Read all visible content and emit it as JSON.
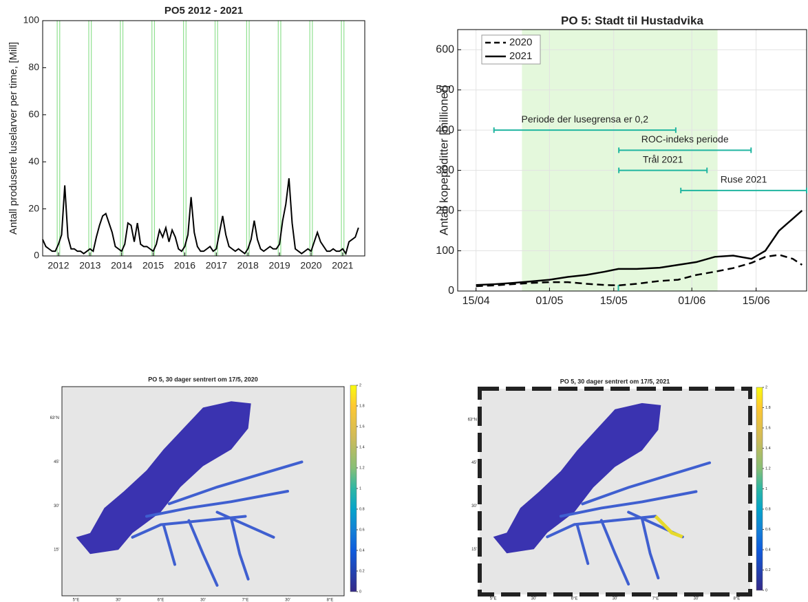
{
  "chart_data": [
    {
      "type": "line",
      "title": "PO5 2012 - 2021",
      "ylabel": "Antall produserte luselarver per time, [Mill]",
      "x": [
        2011.5,
        2011.6,
        2011.7,
        2011.8,
        2011.9,
        2012.0,
        2012.1,
        2012.2,
        2012.3,
        2012.4,
        2012.5,
        2012.6,
        2012.7,
        2012.8,
        2012.9,
        2013.0,
        2013.1,
        2013.2,
        2013.3,
        2013.4,
        2013.5,
        2013.6,
        2013.7,
        2013.8,
        2013.9,
        2014.0,
        2014.1,
        2014.2,
        2014.3,
        2014.4,
        2014.5,
        2014.6,
        2014.7,
        2014.8,
        2014.9,
        2015.0,
        2015.1,
        2015.2,
        2015.3,
        2015.4,
        2015.5,
        2015.6,
        2015.7,
        2015.8,
        2015.9,
        2016.0,
        2016.1,
        2016.2,
        2016.3,
        2016.4,
        2016.5,
        2016.6,
        2016.7,
        2016.8,
        2016.9,
        2017.0,
        2017.1,
        2017.2,
        2017.3,
        2017.4,
        2017.5,
        2017.6,
        2017.7,
        2017.8,
        2017.9,
        2018.0,
        2018.1,
        2018.2,
        2018.3,
        2018.4,
        2018.5,
        2018.6,
        2018.7,
        2018.8,
        2018.9,
        2019.0,
        2019.1,
        2019.2,
        2019.3,
        2019.4,
        2019.5,
        2019.6,
        2019.7,
        2019.8,
        2019.9,
        2020.0,
        2020.1,
        2020.2,
        2020.3,
        2020.4,
        2020.5,
        2020.6,
        2020.7,
        2020.8,
        2020.9,
        2021.0,
        2021.1,
        2021.2,
        2021.3,
        2021.4,
        2021.5
      ],
      "values": [
        7,
        4,
        3,
        2,
        2,
        5,
        9,
        30,
        8,
        3,
        3,
        2,
        2,
        1,
        2,
        3,
        2,
        8,
        13,
        17,
        18,
        14,
        10,
        4,
        3,
        2,
        5,
        14,
        13,
        6,
        14,
        5,
        4,
        4,
        3,
        2,
        5,
        11,
        8,
        12,
        6,
        11,
        8,
        3,
        2,
        4,
        9,
        25,
        10,
        4,
        2,
        2,
        3,
        4,
        2,
        3,
        10,
        17,
        9,
        4,
        3,
        2,
        3,
        2,
        1,
        3,
        7,
        15,
        7,
        3,
        2,
        3,
        4,
        3,
        3,
        5,
        15,
        22,
        33,
        14,
        3,
        2,
        1,
        2,
        3,
        2,
        6,
        10,
        6,
        4,
        2,
        2,
        3,
        2,
        2,
        3,
        1,
        6,
        7,
        8,
        12
      ],
      "color": "#000000",
      "xlim": [
        2011.5,
        2021.7
      ],
      "xticks": [
        2012,
        2013,
        2014,
        2015,
        2016,
        2017,
        2018,
        2019,
        2020,
        2021
      ],
      "ylim": [
        0,
        100
      ],
      "yticks": [
        0,
        20,
        40,
        60,
        80,
        100
      ],
      "highlight_color": "#8fe08f",
      "highlight_lines": [
        2011.96,
        2012.04,
        2012.96,
        2013.04,
        2013.96,
        2014.04,
        2014.96,
        2015.04,
        2015.96,
        2016.04,
        2016.96,
        2017.04,
        2017.96,
        2018.04,
        2018.96,
        2019.04,
        2019.96,
        2020.04,
        2020.96,
        2021.04
      ]
    },
    {
      "type": "line",
      "title": "PO 5: Stadt til Hustadvika",
      "ylabel": "Antall kopepoditter [millioner]",
      "x": [
        0,
        4,
        8,
        12,
        16,
        20,
        24,
        28,
        31,
        35,
        40,
        44,
        48,
        52,
        56,
        60,
        63,
        66,
        69,
        71
      ],
      "xlim": [
        -4,
        72
      ],
      "xticks": [
        {
          "value": 0,
          "label": "15/04"
        },
        {
          "value": 16,
          "label": "01/05"
        },
        {
          "value": 30,
          "label": "15/05"
        },
        {
          "value": 47,
          "label": "01/06"
        },
        {
          "value": 61,
          "label": "15/06"
        }
      ],
      "ylim": [
        0,
        650
      ],
      "yticks": [
        0,
        100,
        200,
        300,
        400,
        500,
        600
      ],
      "grid": true,
      "legend": "upper left",
      "shaded_region": [
        10,
        52.6
      ],
      "shaded_color": "#e4f8dc",
      "series": [
        {
          "name": "2020",
          "color": "#000000",
          "linestyle": "dashed",
          "values": [
            12,
            14,
            17,
            20,
            22,
            22,
            18,
            15,
            14,
            18,
            25,
            28,
            40,
            48,
            57,
            70,
            85,
            90,
            80,
            65
          ]
        },
        {
          "name": "2021",
          "color": "#000000",
          "linestyle": "solid",
          "values": [
            15,
            17,
            20,
            24,
            28,
            35,
            40,
            48,
            55,
            55,
            58,
            65,
            72,
            85,
            88,
            80,
            100,
            150,
            180,
            200
          ]
        }
      ],
      "interval_color": "#1fb5a0",
      "intervals": [
        {
          "label": "Periode der lusegrensa er 0,2",
          "start": 3.9,
          "end": 43.5,
          "y": 400
        },
        {
          "label": "ROC-indeks periode",
          "start": 31.1,
          "end": 59.9,
          "y": 350
        },
        {
          "label": "Trål 2021",
          "start": 31.1,
          "end": 50.3,
          "y": 300
        },
        {
          "label": "Ruse 2021",
          "start": 44.6,
          "end": 72,
          "y": 250
        }
      ],
      "tick_mark": {
        "x": 31,
        "from": 0,
        "to": 15
      }
    },
    {
      "type": "map",
      "title": "PO 5, 30 dager sentrert om 17/5, 2020",
      "clim": [
        0,
        2
      ],
      "cticks": [
        0,
        0.2,
        0.4,
        0.6,
        0.8,
        1,
        1.2,
        1.4,
        1.6,
        1.8,
        2
      ],
      "lat_labels": [
        "63°N",
        "45'",
        "30'",
        "15'"
      ],
      "lon_labels": [
        "5°E",
        "30'",
        "6°E",
        "30'",
        "7°E",
        "30'",
        "8°E"
      ],
      "frame": "solid"
    },
    {
      "type": "map",
      "title": "PO 5, 30 dager sentrert om 17/5, 2021",
      "clim": [
        0,
        2
      ],
      "cticks": [
        0,
        0.2,
        0.4,
        0.6,
        0.8,
        1,
        1.2,
        1.4,
        1.6,
        1.8,
        2
      ],
      "lat_labels": [
        "63°N",
        "45'",
        "30'",
        "15'"
      ],
      "lon_labels": [
        "5°E",
        "30'",
        "6°E",
        "30'",
        "7°E",
        "30'",
        "8°E"
      ],
      "frame": "dashed"
    }
  ]
}
